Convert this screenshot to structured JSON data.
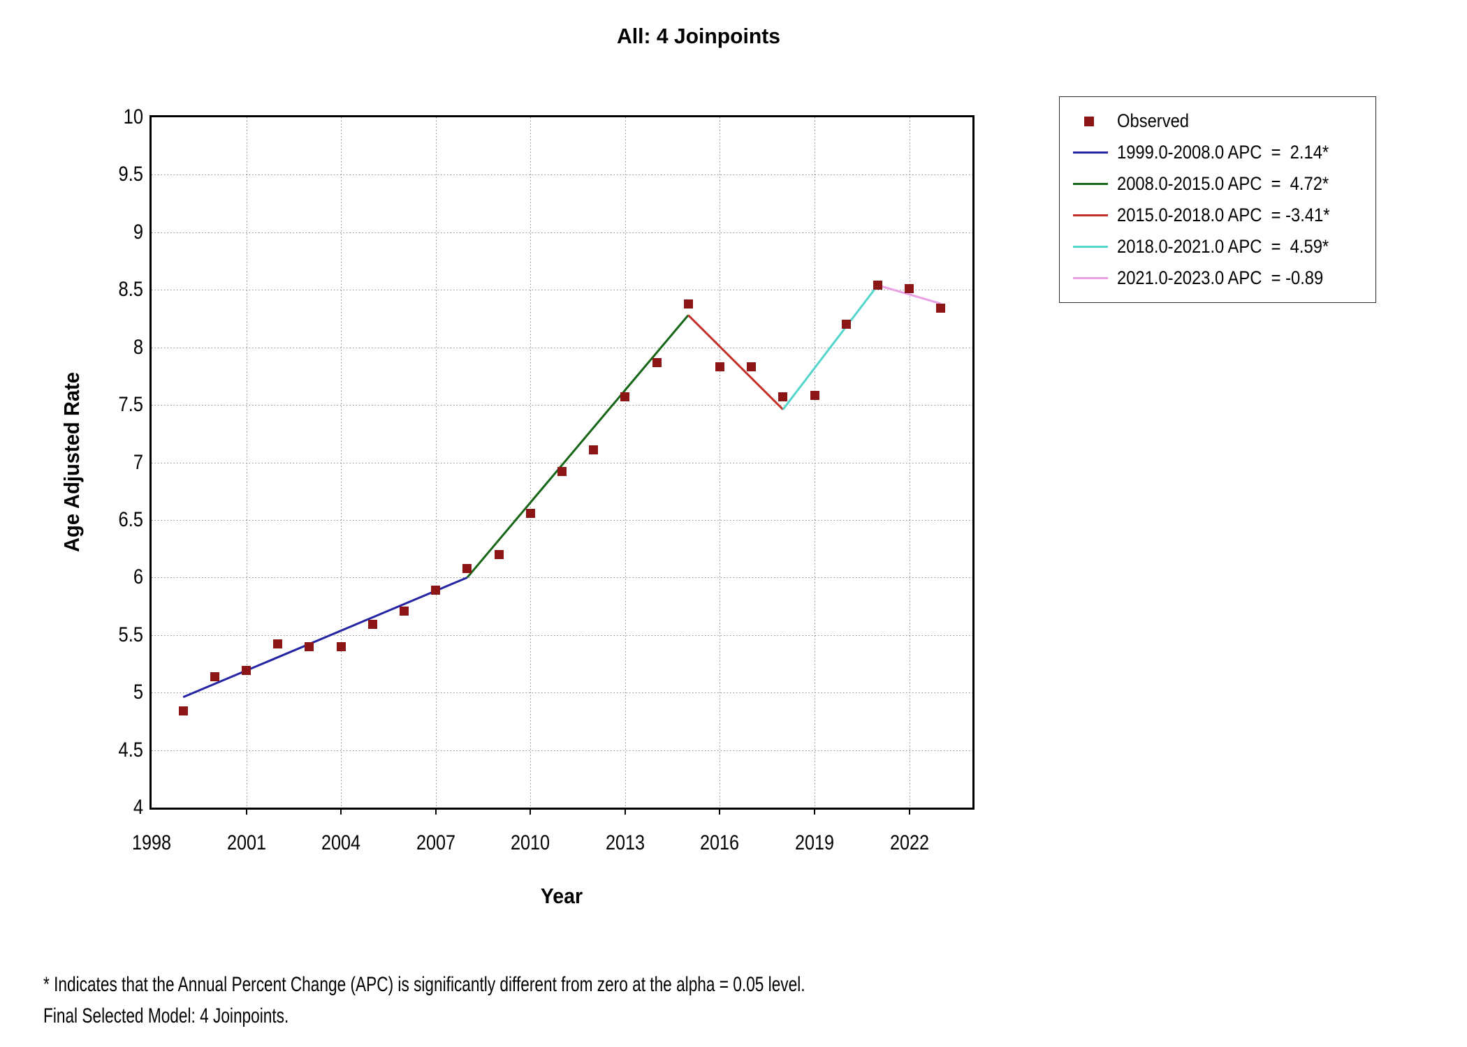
{
  "title": "All: 4 Joinpoints",
  "footnote": {
    "line1": "* Indicates that the Annual Percent Change (APC) is significantly different from zero at the alpha = 0.05 level.",
    "line2": "Final Selected Model: 4 Joinpoints."
  },
  "colors": {
    "marker": "#8C1515",
    "grid": "#8C8C8C",
    "axis": "#000000",
    "segment_blue": "#2525A3",
    "segment_green": "#176617",
    "segment_red": "#C2302A",
    "segment_cyan": "#55D6CC",
    "segment_pink": "#E9A0E5"
  },
  "chart_data": {
    "type": "scatter",
    "title": "All: 4 Joinpoints",
    "xlabel": "Year",
    "ylabel": "Age Adjusted Rate",
    "xlim": [
      1998,
      2024
    ],
    "ylim": [
      4,
      10
    ],
    "grid": "dotted",
    "legend_position": "outside-right-top",
    "x_ticks": [
      1998,
      2001,
      2004,
      2007,
      2010,
      2013,
      2016,
      2019,
      2022
    ],
    "x_tick_labels": [
      "1998",
      "2001",
      "2004",
      "2007",
      "2010",
      "2013",
      "2016",
      "2019",
      "2022"
    ],
    "y_ticks": [
      4,
      4.5,
      5,
      5.5,
      6,
      6.5,
      7,
      7.5,
      8,
      8.5,
      9,
      9.5,
      10
    ],
    "y_tick_labels": [
      "4",
      "4.5",
      "5",
      "5.5",
      "6",
      "6.5",
      "7",
      "7.5",
      "8",
      "8.5",
      "9",
      "9.5",
      "10"
    ],
    "observed": {
      "name": "Observed",
      "marker": "square",
      "color": "#8C1515",
      "years": [
        1999,
        2000,
        2001,
        2002,
        2003,
        2004,
        2005,
        2006,
        2007,
        2008,
        2009,
        2010,
        2011,
        2012,
        2013,
        2014,
        2015,
        2016,
        2017,
        2018,
        2019,
        2020,
        2021,
        2022,
        2023
      ],
      "values": [
        4.84,
        5.14,
        5.19,
        5.42,
        5.4,
        5.4,
        5.59,
        5.71,
        5.89,
        6.08,
        6.2,
        6.56,
        6.92,
        7.11,
        7.57,
        7.87,
        8.38,
        7.83,
        7.83,
        7.57,
        7.58,
        8.2,
        8.54,
        8.51,
        8.34
      ],
      "legend_label": "Observed"
    },
    "segments": [
      {
        "label": "1999.0-2008.0 APC  =  2.14*",
        "apc": 2.14,
        "significant": true,
        "color": "#2525A3",
        "x": [
          1999,
          2008
        ],
        "y": [
          4.96,
          6.0
        ]
      },
      {
        "label": "2008.0-2015.0 APC  =  4.72*",
        "apc": 4.72,
        "significant": true,
        "color": "#176617",
        "x": [
          2008,
          2015
        ],
        "y": [
          6.0,
          8.28
        ]
      },
      {
        "label": "2015.0-2018.0 APC  = -3.41*",
        "apc": -3.41,
        "significant": true,
        "color": "#C2302A",
        "x": [
          2015,
          2018
        ],
        "y": [
          8.28,
          7.46
        ]
      },
      {
        "label": "2018.0-2021.0 APC  =  4.59*",
        "apc": 4.59,
        "significant": true,
        "color": "#55D6CC",
        "x": [
          2018,
          2021
        ],
        "y": [
          7.46,
          8.54
        ]
      },
      {
        "label": "2021.0-2023.0 APC  = -0.89",
        "apc": -0.89,
        "significant": false,
        "color": "#E9A0E5",
        "x": [
          2021,
          2023
        ],
        "y": [
          8.54,
          8.38
        ]
      }
    ]
  }
}
